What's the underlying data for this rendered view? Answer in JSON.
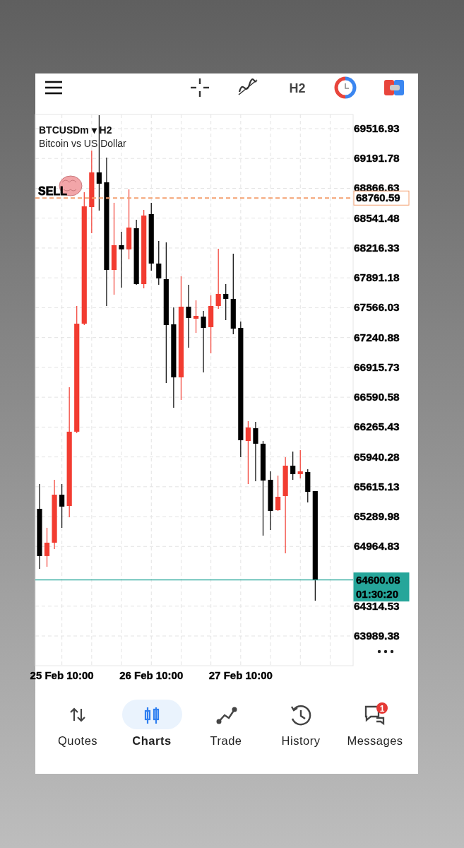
{
  "chart_data": {
    "type": "candlestick",
    "title": "BTCUSDm ▾ H2",
    "subtitle": "Bitcoin vs US Dollar",
    "categories": [
      null,
      null,
      null,
      "25 Feb 10:00",
      null,
      null,
      null,
      null,
      null,
      null,
      null,
      null,
      null,
      null,
      null,
      "26 Feb 10:00",
      null,
      null,
      null,
      null,
      null,
      null,
      null,
      null,
      null,
      null,
      null,
      "27 Feb 10:00",
      null,
      null,
      null,
      null,
      null,
      null,
      null,
      null,
      null,
      null
    ],
    "ohlc": [
      [
        65375,
        65645,
        64721,
        64860
      ],
      [
        64860,
        65168,
        64744,
        65006
      ],
      [
        65006,
        65691,
        64937,
        65529
      ],
      [
        65529,
        65645,
        65168,
        65399
      ],
      [
        65406,
        66700,
        65283,
        66215
      ],
      [
        66215,
        67585,
        66199,
        67392
      ],
      [
        67392,
        68824,
        67377,
        68670
      ],
      [
        68662,
        69278,
        68378,
        69040
      ],
      [
        69040,
        69663,
        68624,
        68917
      ],
      [
        68932,
        69201,
        67585,
        67977
      ],
      [
        67977,
        68709,
        67708,
        68247
      ],
      [
        68247,
        68393,
        67785,
        68201
      ],
      [
        68201,
        68855,
        68093,
        68439
      ],
      [
        68432,
        68524,
        67816,
        67823
      ],
      [
        67823,
        68632,
        67777,
        68570
      ],
      [
        68586,
        68709,
        67970,
        68047
      ],
      [
        68047,
        68293,
        67816,
        67885
      ],
      [
        67877,
        68278,
        66746,
        67377
      ],
      [
        67385,
        67569,
        66476,
        66807
      ],
      [
        66807,
        67908,
        66561,
        67577
      ],
      [
        67577,
        67816,
        67131,
        67454
      ],
      [
        67446,
        67646,
        67292,
        67477
      ],
      [
        67469,
        67531,
        66861,
        67346
      ],
      [
        67354,
        67700,
        67069,
        67585
      ],
      [
        67585,
        68208,
        67554,
        67716
      ],
      [
        67716,
        67823,
        67431,
        67662
      ],
      [
        67662,
        68154,
        67277,
        67338
      ],
      [
        67346,
        67415,
        65937,
        66122
      ],
      [
        66114,
        66330,
        65645,
        66261
      ],
      [
        66253,
        66322,
        65676,
        66084
      ],
      [
        66084,
        66114,
        65083,
        65683
      ],
      [
        65691,
        65783,
        65145,
        65352
      ],
      [
        65360,
        65737,
        65352,
        65506
      ],
      [
        65514,
        65937,
        64891,
        65845
      ],
      [
        65845,
        65999,
        65691,
        65753
      ],
      [
        65753,
        66014,
        65706,
        65783
      ],
      [
        65776,
        65807,
        65445,
        65560
      ],
      [
        65568,
        65568,
        64375,
        64600.08
      ]
    ],
    "colors": [
      "#000000",
      "#f23c31",
      "#f23c31",
      "#000000",
      "#f23c31",
      "#f23c31",
      "#f23c31",
      "#f23c31",
      "#000000",
      "#000000",
      "#f23c31",
      "#000000",
      "#f23c31",
      "#000000",
      "#f23c31",
      "#000000",
      "#000000",
      "#000000",
      "#000000",
      "#f23c31",
      "#000000",
      "#f23c31",
      "#000000",
      "#f23c31",
      "#f23c31",
      "#000000",
      "#000000",
      "#000000",
      "#f23c31",
      "#000000",
      "#000000",
      "#000000",
      "#f23c31",
      "#f23c31",
      "#000000",
      "#f23c31",
      "#000000",
      "#000000"
    ],
    "ylim": [
      63666,
      69671
    ],
    "yticks": [
      63989.38,
      64314.53,
      64964.83,
      65289.98,
      65615.13,
      65940.28,
      66265.43,
      66590.58,
      66915.73,
      67240.88,
      67566.03,
      67891.18,
      68216.33,
      68541.48,
      68866.63,
      69191.78,
      69516.93
    ],
    "grid": true,
    "ref_lines": [
      {
        "axis": "y",
        "value": 68760.59,
        "label": "68760.59",
        "color": "#f4a070",
        "line_style": "dashed"
      },
      {
        "axis": "y",
        "value": 64600.08,
        "label": "64600.08",
        "color": "#26a69a",
        "line_style": "solid"
      }
    ],
    "annotations": [
      "SELL",
      "01:30:20",
      "H2",
      "Quotes",
      "Charts",
      "Trade",
      "History",
      "Messages",
      "1"
    ]
  }
}
